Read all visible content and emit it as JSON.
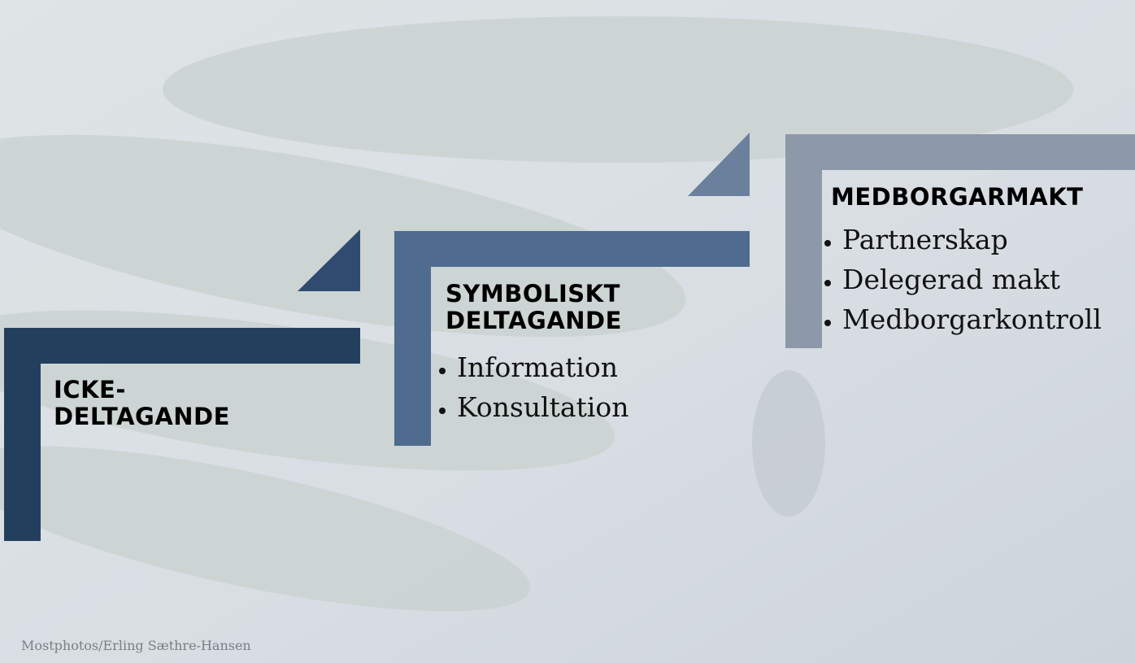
{
  "steps": [
    {
      "title": "ICKE-DELTAGANDE",
      "items": []
    },
    {
      "title": "SYMBOLISKT DELTAGANDE",
      "items": [
        "Information",
        "Konsultation"
      ]
    },
    {
      "title": "MEDBORGARMAKT",
      "items": [
        "Partnerskap",
        "Delegerad makt",
        "Medborgarkontroll"
      ]
    }
  ],
  "credit": "Mostphotos/Erling Sæthre-Hansen"
}
